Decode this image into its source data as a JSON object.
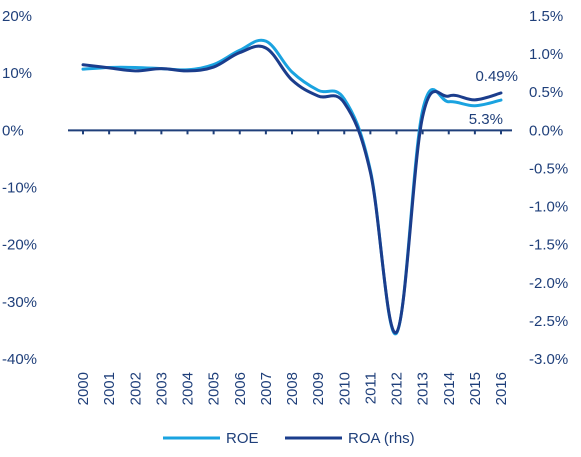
{
  "chart_data": {
    "type": "line",
    "title": "",
    "xlabel": "",
    "ylabel": "",
    "x": [
      "2000",
      "2001",
      "2002",
      "2003",
      "2004",
      "2005",
      "2006",
      "2007",
      "2008",
      "2009",
      "2010",
      "2011",
      "2012",
      "2013",
      "2014",
      "2015",
      "2016"
    ],
    "y_left": {
      "ylim": [
        -40,
        20
      ],
      "ticks": [
        20,
        10,
        0,
        -10,
        -20,
        -30,
        -40
      ],
      "tick_labels": [
        "20%",
        "10%",
        "0%",
        "-10%",
        "-20%",
        "-30%",
        "-40%"
      ]
    },
    "y_right": {
      "ylim": [
        -3.0,
        1.5
      ],
      "ticks": [
        1.5,
        1.0,
        0.5,
        0.0,
        -0.5,
        -1.0,
        -1.5,
        -2.0,
        -2.5,
        -3.0
      ],
      "tick_labels": [
        "1.5%",
        "1.0%",
        "0.5%",
        "0.0%",
        "-0.5%",
        "-1.0%",
        "-1.5%",
        "-2.0%",
        "-2.5%",
        "-3.0%"
      ]
    },
    "series": [
      {
        "name": "ROE",
        "axis": "left",
        "color": "#1aa3e0",
        "values": [
          10.7,
          11.0,
          11.0,
          10.8,
          10.6,
          11.5,
          14.0,
          15.6,
          10.2,
          7.0,
          5.5,
          -7.0,
          -35.5,
          3.5,
          5.0,
          4.3,
          5.3
        ]
      },
      {
        "name": "ROA (rhs)",
        "axis": "right",
        "color": "#1b3d8c",
        "values": [
          0.86,
          0.82,
          0.78,
          0.81,
          0.78,
          0.83,
          1.02,
          1.08,
          0.66,
          0.45,
          0.36,
          -0.55,
          -2.65,
          0.18,
          0.45,
          0.4,
          0.49
        ]
      }
    ],
    "annotations": [
      {
        "text": "0.49%",
        "series": "ROA (rhs)",
        "x": "2016"
      },
      {
        "text": "5.3%",
        "series": "ROE",
        "x": "2016"
      }
    ],
    "legend": {
      "position": "bottom",
      "entries": [
        "ROE",
        "ROA (rhs)"
      ]
    },
    "grid": false
  },
  "colors": {
    "axis": "#1f3f7a",
    "text": "#1f3f7a"
  }
}
